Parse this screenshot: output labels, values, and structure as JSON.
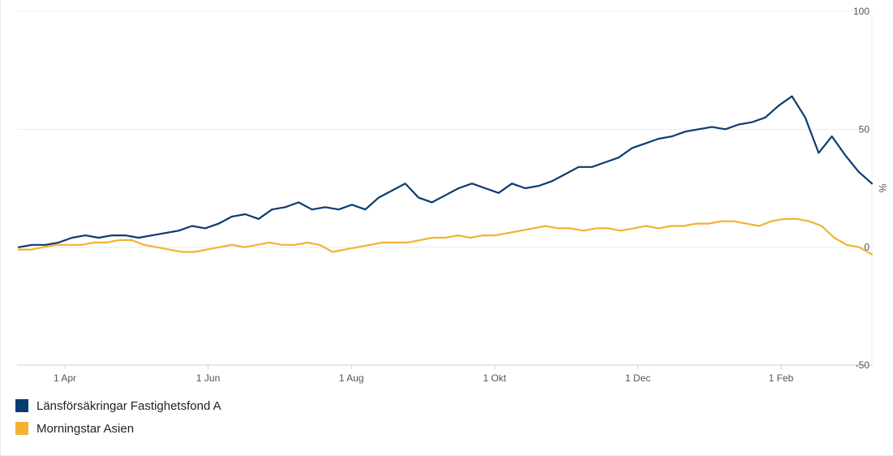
{
  "chart_data": {
    "type": "line",
    "title": "",
    "xlabel": "",
    "ylabel": "%",
    "ylim": [
      -50,
      100
    ],
    "y_axis_position": "right",
    "grid": true,
    "legend_placement": "bottom-left",
    "x_ticks": [
      "1 Apr",
      "1 Jun",
      "1 Aug",
      "1 Okt",
      "1 Dec",
      "1 Feb"
    ],
    "y_ticks": [
      "100",
      "50",
      "0",
      "-50"
    ],
    "series": [
      {
        "name": "Länsförsäkringar Fastighetsfond A",
        "color": "#0b3c6e",
        "values": [
          0,
          1,
          1,
          2,
          4,
          5,
          4,
          5,
          5,
          4,
          5,
          6,
          7,
          9,
          8,
          10,
          13,
          14,
          12,
          16,
          17,
          19,
          16,
          17,
          16,
          18,
          16,
          21,
          24,
          27,
          21,
          19,
          22,
          25,
          27,
          25,
          23,
          27,
          25,
          26,
          28,
          31,
          34,
          34,
          36,
          38,
          42,
          44,
          46,
          47,
          49,
          50,
          51,
          50,
          52,
          53,
          55,
          60,
          64,
          55,
          40,
          47,
          39,
          32,
          27
        ]
      },
      {
        "name": "Morningstar Asien",
        "color": "#f2b233",
        "values": [
          -1,
          -1,
          0,
          1,
          1,
          1,
          2,
          2,
          3,
          3,
          1,
          0,
          -1,
          -2,
          -2,
          -1,
          0,
          1,
          0,
          1,
          2,
          1,
          1,
          2,
          1,
          -2,
          -1,
          0,
          1,
          2,
          2,
          2,
          3,
          4,
          4,
          5,
          4,
          5,
          5,
          6,
          7,
          8,
          9,
          8,
          8,
          7,
          8,
          8,
          7,
          8,
          9,
          8,
          9,
          9,
          10,
          10,
          11,
          11,
          10,
          9,
          11,
          12,
          12,
          11,
          9,
          4,
          1,
          0,
          -3
        ]
      }
    ]
  }
}
